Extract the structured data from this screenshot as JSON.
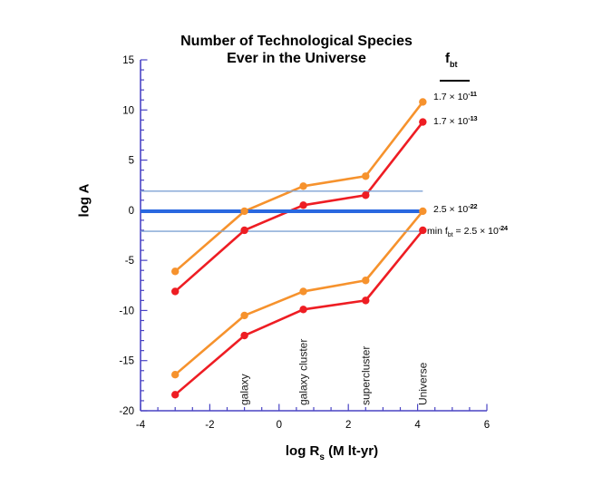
{
  "title": {
    "line1": "Number of Technological Species",
    "line2": "Ever in the Universe"
  },
  "axes": {
    "y_label": "log A",
    "x_label_main": "log R",
    "x_label_sub": "s",
    "x_label_rest": " (M lt-yr)"
  },
  "legend": {
    "header_main": "f",
    "header_sub": "bt",
    "entries": [
      {
        "base": "1.7 × 10",
        "exp": "-11"
      },
      {
        "base": "1.7 × 10",
        "exp": "-13"
      },
      {
        "base": "2.5 × 10",
        "exp": "-22"
      },
      {
        "prefix": "min f",
        "prefix_sub": "bt",
        "eq": " = ",
        "base": "2.5 × 10",
        "exp": "-24"
      }
    ]
  },
  "chart_data": {
    "type": "line",
    "title": "Number of Technological Species Ever in the Universe",
    "xlabel": "log Rs (M lt-yr)",
    "ylabel": "log A",
    "xlim": [
      -4,
      6
    ],
    "ylim": [
      -20,
      15
    ],
    "grid": false,
    "x_major_ticks": [
      -4,
      -2,
      0,
      2,
      4,
      6
    ],
    "x_minor_step": 0.5,
    "y_major_ticks": [
      -20,
      -15,
      -10,
      -5,
      0,
      5,
      10,
      15
    ],
    "y_minor_step": 1,
    "axis_color": "#4A44C4",
    "x": [
      -3,
      -1,
      0.7,
      2.5,
      4.15
    ],
    "series": [
      {
        "name": "f_bt = 1.7 × 10^-11",
        "color": "#F6922D",
        "values": [
          -6.1,
          -0.1,
          2.4,
          3.4,
          10.8
        ]
      },
      {
        "name": "f_bt = 1.7 × 10^-13",
        "color": "#EE1D23",
        "values": [
          -8.1,
          -2.0,
          0.5,
          1.5,
          8.8
        ]
      },
      {
        "name": "f_bt = 2.5 × 10^-22",
        "color": "#F6922D",
        "values": [
          -16.4,
          -10.5,
          -8.1,
          -7.0,
          -0.1
        ]
      },
      {
        "name": "min f_bt = 2.5 × 10^-24",
        "color": "#EE1D23",
        "values": [
          -18.4,
          -12.5,
          -9.9,
          -9.0,
          -2.0
        ]
      }
    ],
    "hlines": [
      {
        "y": 1.9,
        "color": "#7FA3D4",
        "width": 1.4
      },
      {
        "y": -0.1,
        "color": "#2968E0",
        "width": 4
      },
      {
        "y": -2.1,
        "color": "#7FA3D4",
        "width": 1.4
      }
    ],
    "hline_x_end": 4.15,
    "category_annotations": [
      {
        "label": "galaxy",
        "x": -1
      },
      {
        "label": "galaxy cluster",
        "x": 0.7
      },
      {
        "label": "supercluster",
        "x": 2.5
      },
      {
        "label": "Universe",
        "x": 4.15
      }
    ]
  }
}
